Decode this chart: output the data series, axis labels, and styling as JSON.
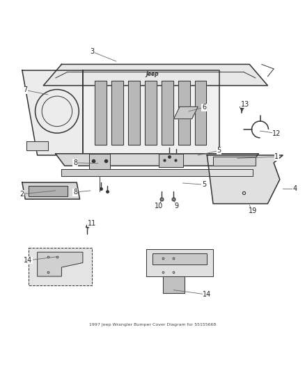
{
  "title": "1997 Jeep Wrangler Bumper Cover Diagram for 55155668",
  "background_color": "#ffffff",
  "line_color": "#333333",
  "label_color": "#222222",
  "fig_width": 4.38,
  "fig_height": 5.33,
  "dpi": 100
}
